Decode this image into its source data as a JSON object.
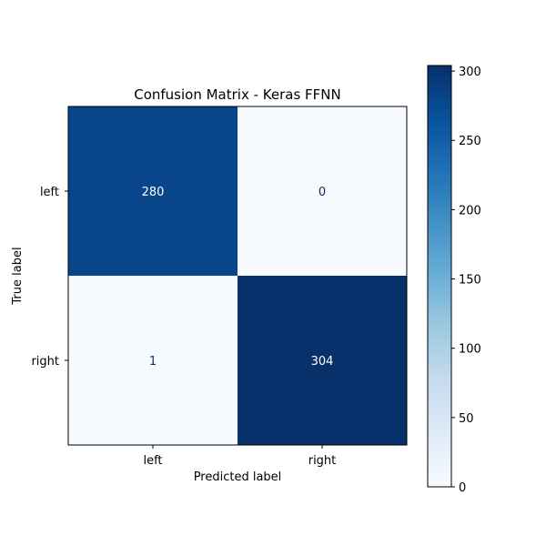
{
  "chart_data": {
    "type": "heatmap",
    "title": "Confusion Matrix - Keras FFNN",
    "xlabel": "Predicted label",
    "ylabel": "True label",
    "x_categories": [
      "left",
      "right"
    ],
    "y_categories": [
      "left",
      "right"
    ],
    "values": [
      [
        280,
        0
      ],
      [
        1,
        304
      ]
    ],
    "colormap": "Blues",
    "colorbar": {
      "range": [
        0,
        304
      ],
      "ticks": [
        0,
        50,
        100,
        150,
        200,
        250,
        300
      ],
      "tick_labels": [
        "0",
        "50",
        "100",
        "150",
        "200",
        "250",
        "300"
      ]
    },
    "colors": {
      "low": "#f7fbff",
      "high": "#08306b",
      "text_on_dark": "#ffffff",
      "text_on_light": "#08306b"
    }
  }
}
